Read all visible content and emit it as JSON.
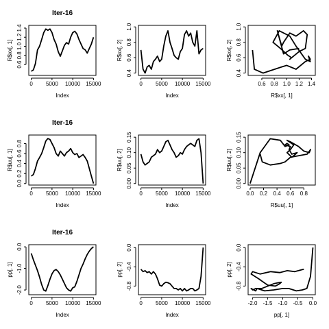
{
  "chart_data": [
    {
      "type": "line",
      "title": "Iter-16",
      "xlabel": "Index",
      "ylabel": "R$xx[, 1]",
      "xlim": [
        -600,
        15600
      ],
      "ylim": [
        0.36,
        1.46
      ],
      "xticks": [
        0,
        5000,
        10000,
        15000
      ],
      "yticks": [
        0.6,
        0.8,
        1.0,
        1.2,
        1.4
      ],
      "ytick_labels": [
        "0.6",
        "0.8",
        "1.0",
        "1.2",
        "1.4"
      ],
      "x": [
        0,
        500,
        1000,
        1500,
        2000,
        2500,
        3000,
        3500,
        4000,
        4500,
        5000,
        5500,
        6000,
        6500,
        7000,
        7500,
        8000,
        8500,
        9000,
        9500,
        10000,
        10500,
        11000,
        11500,
        12000,
        12500,
        13000,
        13500,
        14000,
        14500,
        15000
      ],
      "y": [
        0.45,
        0.48,
        0.62,
        0.92,
        1.0,
        1.15,
        1.3,
        1.38,
        1.35,
        1.38,
        1.3,
        1.15,
        1.05,
        0.88,
        0.78,
        0.9,
        1.02,
        1.08,
        1.05,
        1.2,
        1.3,
        1.33,
        1.27,
        1.15,
        1.05,
        0.95,
        0.92,
        0.85,
        0.95,
        1.05,
        1.2
      ]
    },
    {
      "type": "line",
      "title": "",
      "xlabel": "Index",
      "ylabel": "R$xx[, 2]",
      "xlim": [
        -600,
        15600
      ],
      "ylim": [
        0.37,
        1.02
      ],
      "xticks": [
        0,
        5000,
        10000,
        15000
      ],
      "yticks": [
        0.4,
        0.6,
        0.8,
        1.0
      ],
      "ytick_labels": [
        "0.4",
        "0.6",
        "0.8",
        "1.0"
      ],
      "x": [
        0,
        500,
        1000,
        1500,
        2000,
        2500,
        3000,
        3500,
        4000,
        4500,
        5000,
        5500,
        6000,
        6500,
        7000,
        7500,
        8000,
        8500,
        9000,
        9500,
        10000,
        10500,
        11000,
        11500,
        12000,
        12500,
        13000,
        13500,
        14000,
        14500,
        15000
      ],
      "y": [
        0.7,
        0.45,
        0.4,
        0.48,
        0.5,
        0.45,
        0.55,
        0.58,
        0.62,
        0.55,
        0.58,
        0.75,
        0.88,
        0.95,
        0.8,
        0.72,
        0.63,
        0.6,
        0.58,
        0.68,
        0.72,
        0.9,
        0.95,
        0.88,
        0.92,
        0.8,
        0.75,
        0.95,
        0.65,
        0.7,
        0.72
      ]
    },
    {
      "type": "line",
      "title": "",
      "xlabel": "R$xx[, 1]",
      "ylabel": "R$xx[, 2]",
      "xlim": [
        0.38,
        1.46
      ],
      "ylim": [
        0.37,
        1.02
      ],
      "xticks": [
        0.6,
        0.8,
        1.0,
        1.2,
        1.4
      ],
      "xtick_labels": [
        "0.6",
        "0.8",
        "1.0",
        "1.2",
        "1.4"
      ],
      "yticks": [
        0.4,
        0.6,
        0.8,
        1.0
      ],
      "ytick_labels": [
        "0.4",
        "0.6",
        "0.8",
        "1.0"
      ],
      "x": [
        0.45,
        0.48,
        0.62,
        0.92,
        1.0,
        1.15,
        1.3,
        1.38,
        1.35,
        1.38,
        1.3,
        1.15,
        1.05,
        0.88,
        0.78,
        0.9,
        1.02,
        1.08,
        1.05,
        1.2,
        1.3,
        1.33,
        1.27,
        1.15,
        1.05,
        0.95,
        0.92,
        0.85,
        0.95,
        1.05,
        1.2
      ],
      "y": [
        0.7,
        0.45,
        0.4,
        0.48,
        0.5,
        0.45,
        0.55,
        0.58,
        0.62,
        0.55,
        0.58,
        0.75,
        0.88,
        0.95,
        0.8,
        0.72,
        0.63,
        0.6,
        0.58,
        0.68,
        0.72,
        0.9,
        0.95,
        0.88,
        0.92,
        0.8,
        0.75,
        0.95,
        0.65,
        0.7,
        0.72
      ]
    },
    {
      "type": "line",
      "title": "Iter-16",
      "xlabel": "Index",
      "ylabel": "R$uu[, 1]",
      "xlim": [
        -600,
        15600
      ],
      "ylim": [
        -0.03,
        0.97
      ],
      "xticks": [
        0,
        5000,
        10000,
        15000
      ],
      "yticks": [
        0.0,
        0.2,
        0.4,
        0.6,
        0.8
      ],
      "ytick_labels": [
        "0.0",
        "0.2",
        "0.4",
        "0.6",
        "0.8"
      ],
      "x": [
        0,
        500,
        1000,
        1500,
        2000,
        2500,
        3000,
        3500,
        4000,
        4500,
        5000,
        5500,
        6000,
        6500,
        7000,
        7500,
        8000,
        8500,
        9000,
        9500,
        10000,
        10500,
        11000,
        11500,
        12000,
        12500,
        13000,
        13500,
        14000,
        14500,
        15000
      ],
      "y": [
        0.15,
        0.18,
        0.3,
        0.45,
        0.52,
        0.6,
        0.72,
        0.85,
        0.9,
        0.88,
        0.8,
        0.72,
        0.6,
        0.55,
        0.65,
        0.6,
        0.55,
        0.62,
        0.65,
        0.7,
        0.62,
        0.58,
        0.6,
        0.52,
        0.55,
        0.58,
        0.52,
        0.45,
        0.3,
        0.15,
        0.0
      ]
    },
    {
      "type": "line",
      "title": "",
      "xlabel": "Index",
      "ylabel": "R$uu[, 2]",
      "xlim": [
        -600,
        15600
      ],
      "ylim": [
        -0.005,
        0.157
      ],
      "xticks": [
        0,
        5000,
        10000,
        15000
      ],
      "yticks": [
        0.0,
        0.05,
        0.1,
        0.15
      ],
      "ytick_labels": [
        "0.00",
        "0.05",
        "0.10",
        "0.15"
      ],
      "x": [
        0,
        500,
        1000,
        1500,
        2000,
        2500,
        3000,
        3500,
        4000,
        4500,
        5000,
        5500,
        6000,
        6500,
        7000,
        7500,
        8000,
        8500,
        9000,
        9500,
        10000,
        10500,
        11000,
        11500,
        12000,
        12500,
        13000,
        13500,
        14000,
        14500,
        15000
      ],
      "y": [
        0.095,
        0.07,
        0.06,
        0.065,
        0.07,
        0.085,
        0.09,
        0.095,
        0.11,
        0.1,
        0.105,
        0.12,
        0.135,
        0.14,
        0.125,
        0.11,
        0.1,
        0.085,
        0.09,
        0.1,
        0.095,
        0.11,
        0.12,
        0.125,
        0.13,
        0.125,
        0.12,
        0.14,
        0.145,
        0.1,
        0.0
      ]
    },
    {
      "type": "line",
      "title": "",
      "xlabel": "R$uu[, 1]",
      "ylabel": "R$uu[, 2]",
      "xlim": [
        -0.03,
        0.97
      ],
      "ylim": [
        -0.005,
        0.157
      ],
      "xticks": [
        0.0,
        0.2,
        0.4,
        0.6,
        0.8
      ],
      "xtick_labels": [
        "0.0",
        "0.2",
        "0.4",
        "0.6",
        "0.8"
      ],
      "yticks": [
        0.0,
        0.05,
        0.1,
        0.15
      ],
      "ytick_labels": [
        "0.00",
        "0.05",
        "0.10",
        "0.15"
      ],
      "x": [
        0.15,
        0.18,
        0.3,
        0.45,
        0.52,
        0.6,
        0.72,
        0.85,
        0.9,
        0.88,
        0.8,
        0.72,
        0.6,
        0.55,
        0.65,
        0.6,
        0.55,
        0.62,
        0.65,
        0.7,
        0.62,
        0.58,
        0.6,
        0.52,
        0.55,
        0.58,
        0.52,
        0.45,
        0.3,
        0.15,
        0.0
      ],
      "y": [
        0.095,
        0.07,
        0.06,
        0.065,
        0.07,
        0.085,
        0.09,
        0.095,
        0.11,
        0.1,
        0.105,
        0.12,
        0.135,
        0.14,
        0.125,
        0.11,
        0.1,
        0.085,
        0.09,
        0.1,
        0.095,
        0.11,
        0.12,
        0.125,
        0.13,
        0.125,
        0.12,
        0.14,
        0.145,
        0.1,
        0.0
      ]
    },
    {
      "type": "line",
      "title": "Iter-16",
      "xlabel": "Index",
      "ylabel": "pp[, 1]",
      "xlim": [
        -600,
        15600
      ],
      "ylim": [
        -2.22,
        0.1
      ],
      "xticks": [
        0,
        5000,
        10000,
        15000
      ],
      "yticks": [
        -2.0,
        -1.0,
        0.0
      ],
      "ytick_labels": [
        "-2.0",
        "-1.0",
        "0.0"
      ],
      "x": [
        0,
        500,
        1000,
        1500,
        2000,
        2500,
        3000,
        3500,
        4000,
        4500,
        5000,
        5500,
        6000,
        6500,
        7000,
        7500,
        8000,
        8500,
        9000,
        9500,
        10000,
        10500,
        11000,
        11500,
        12000,
        12500,
        13000,
        13500,
        14000,
        14500,
        15000
      ],
      "y": [
        -0.3,
        -0.6,
        -0.85,
        -1.1,
        -1.4,
        -1.75,
        -2.0,
        -2.05,
        -1.8,
        -1.5,
        -1.25,
        -1.1,
        -1.05,
        -1.15,
        -1.3,
        -1.5,
        -1.7,
        -1.9,
        -2.0,
        -2.05,
        -1.9,
        -1.85,
        -1.6,
        -1.3,
        -1.0,
        -0.8,
        -0.55,
        -0.35,
        -0.2,
        -0.08,
        0.0
      ]
    },
    {
      "type": "line",
      "title": "",
      "xlabel": "Index",
      "ylabel": "pp[, 2]",
      "xlim": [
        -600,
        15600
      ],
      "ylim": [
        -0.98,
        0.06
      ],
      "xticks": [
        0,
        5000,
        10000,
        15000
      ],
      "yticks": [
        -0.8,
        -0.4,
        0.0
      ],
      "ytick_labels": [
        "-0.8",
        "-0.4",
        "0.0"
      ],
      "x": [
        0,
        500,
        1000,
        1500,
        2000,
        2500,
        3000,
        3500,
        4000,
        4500,
        5000,
        5500,
        6000,
        6500,
        7000,
        7500,
        8000,
        8500,
        9000,
        9500,
        10000,
        10500,
        11000,
        11500,
        12000,
        12500,
        13000,
        13500,
        14000,
        14500,
        15000
      ],
      "y": [
        -0.45,
        -0.5,
        -0.48,
        -0.52,
        -0.5,
        -0.55,
        -0.5,
        -0.55,
        -0.65,
        -0.78,
        -0.8,
        -0.75,
        -0.72,
        -0.73,
        -0.75,
        -0.8,
        -0.85,
        -0.85,
        -0.88,
        -0.85,
        -0.9,
        -0.85,
        -0.9,
        -0.88,
        -0.85,
        -0.85,
        -0.9,
        -0.88,
        -0.85,
        -0.6,
        0.0
      ]
    },
    {
      "type": "line",
      "title": "",
      "xlabel": "pp[, 1]",
      "ylabel": "pp[, 2]",
      "xlim": [
        -2.15,
        0.08
      ],
      "ylim": [
        -0.98,
        0.06
      ],
      "xticks": [
        -2.0,
        -1.5,
        -1.0,
        -0.5,
        0.0
      ],
      "xtick_labels": [
        "-2.0",
        "-1.5",
        "-1.0",
        "-0.5",
        "0.0"
      ],
      "yticks": [
        -0.8,
        -0.4,
        0.0
      ],
      "ytick_labels": [
        "-0.8",
        "-0.4",
        "0.0"
      ],
      "x": [
        -0.3,
        -0.6,
        -0.85,
        -1.1,
        -1.4,
        -1.75,
        -2.0,
        -2.05,
        -1.8,
        -1.5,
        -1.25,
        -1.1,
        -1.05,
        -1.15,
        -1.3,
        -1.5,
        -1.7,
        -1.9,
        -2.0,
        -2.05,
        -1.9,
        -1.85,
        -1.6,
        -1.3,
        -1.0,
        -0.8,
        -0.55,
        -0.35,
        -0.2,
        -0.08,
        0.0
      ],
      "y": [
        -0.45,
        -0.5,
        -0.48,
        -0.52,
        -0.5,
        -0.55,
        -0.5,
        -0.55,
        -0.65,
        -0.78,
        -0.8,
        -0.75,
        -0.72,
        -0.73,
        -0.75,
        -0.8,
        -0.85,
        -0.85,
        -0.88,
        -0.85,
        -0.9,
        -0.85,
        -0.9,
        -0.88,
        -0.85,
        -0.85,
        -0.9,
        -0.88,
        -0.85,
        -0.6,
        0.0
      ]
    }
  ]
}
